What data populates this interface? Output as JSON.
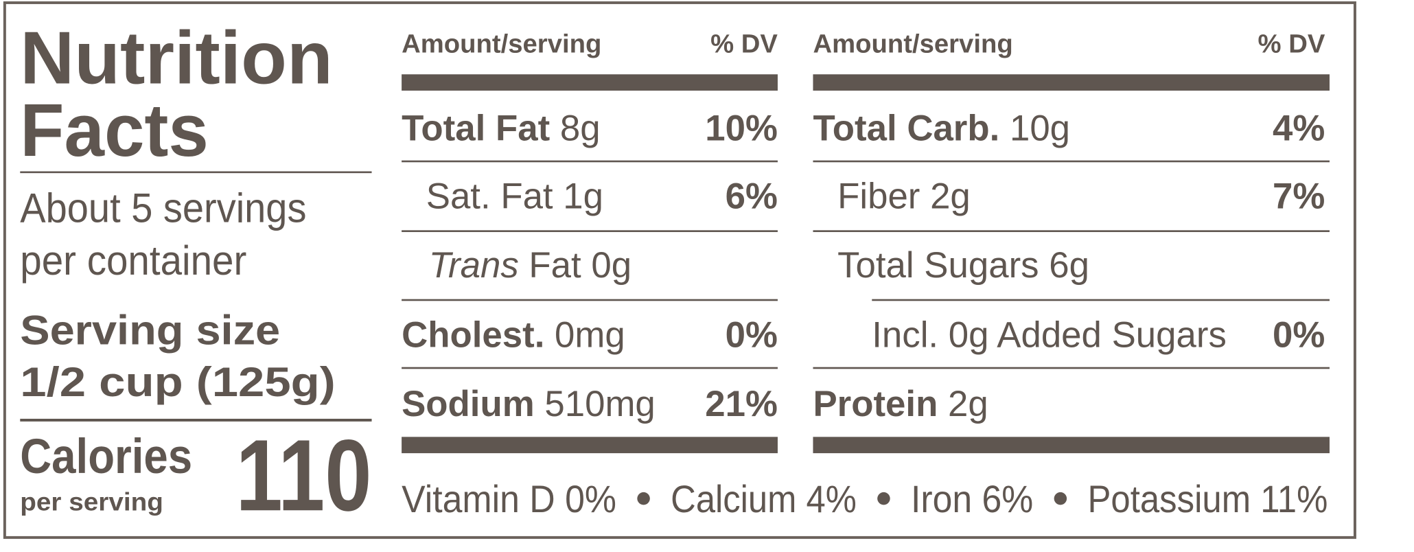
{
  "title_lines": [
    "Nutrition",
    "Facts"
  ],
  "servings_lines": [
    "About 5 servings",
    "per container"
  ],
  "serving_size": {
    "label": "Serving size",
    "value": "1/2 cup (125g)"
  },
  "calories": {
    "label": "Calories",
    "sublabel": "per serving",
    "value": "110"
  },
  "columns": [
    {
      "header": {
        "amount": "Amount/serving",
        "dv": "% DV"
      },
      "rows": [
        {
          "bold": "Total Fat",
          "text": "8g",
          "dv": "10%"
        },
        {
          "text": "Sat. Fat 1g",
          "dv": "6%"
        },
        {
          "italic": "Trans",
          "text": "Fat 0g"
        },
        {
          "bold": "Cholest.",
          "text": "0mg",
          "dv": "0%"
        },
        {
          "bold": "Sodium",
          "text": "510mg",
          "dv": "21%"
        }
      ]
    },
    {
      "header": {
        "amount": "Amount/serving",
        "dv": "% DV"
      },
      "rows": [
        {
          "bold": "Total Carb.",
          "text": "10g",
          "dv": "4%"
        },
        {
          "text": "Fiber 2g",
          "dv": "7%"
        },
        {
          "text": "Total Sugars 6g"
        },
        {
          "text": "Incl. 0g Added Sugars",
          "dv": "0%"
        },
        {
          "bold": "Protein",
          "text": "2g"
        }
      ]
    }
  ],
  "footer": [
    "Vitamin D 0%",
    "Calcium 4%",
    "Iron 6%",
    "Potassium 11%"
  ]
}
